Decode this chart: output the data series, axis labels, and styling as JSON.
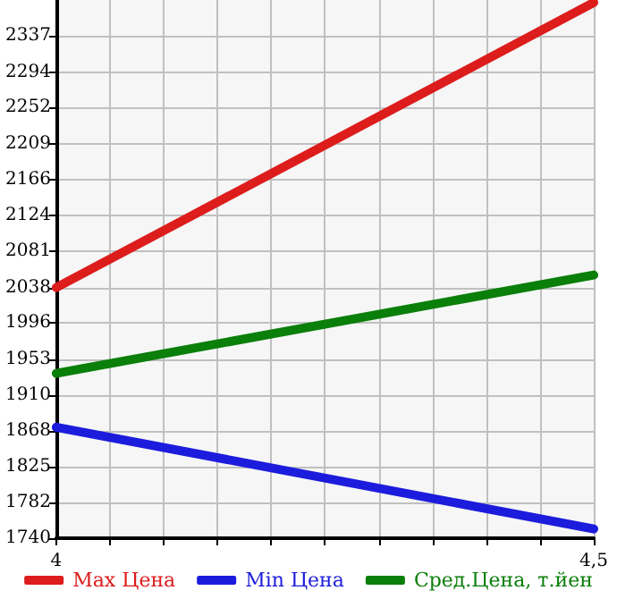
{
  "chart_data": {
    "type": "line",
    "x": [
      4,
      4.5
    ],
    "series": [
      {
        "name": "Max Цена",
        "color": "#dd1c1c",
        "values": [
          2038,
          2377
        ]
      },
      {
        "name": "Min Цена",
        "color": "#1c1cdd",
        "values": [
          1872,
          1751
        ]
      },
      {
        "name": "Сред.Цена, т.йен",
        "color": "#0a7f0a",
        "values": [
          1936,
          2053
        ]
      }
    ],
    "xlim": [
      4,
      4.5
    ],
    "xticks": [
      4,
      {
        "value": 4.05,
        "label": null
      },
      {
        "value": 4.1,
        "label": null
      },
      {
        "value": 4.15,
        "label": null
      },
      {
        "value": 4.2,
        "label": null
      },
      {
        "value": 4.25,
        "label": null
      },
      {
        "value": 4.3,
        "label": null
      },
      {
        "value": 4.35,
        "label": null
      },
      {
        "value": 4.4,
        "label": null
      },
      {
        "value": 4.45,
        "label": null
      },
      {
        "value": 4.5,
        "label": "4,5"
      }
    ],
    "ylim": [
      1740,
      2380
    ],
    "yticks": [
      1740,
      1782,
      1825,
      1868,
      1910,
      1953,
      1996,
      2038,
      2081,
      2124,
      2166,
      2209,
      2252,
      2294,
      2337
    ],
    "grid": true,
    "legend": "bottom",
    "marker": "none",
    "line_style": "solid"
  }
}
